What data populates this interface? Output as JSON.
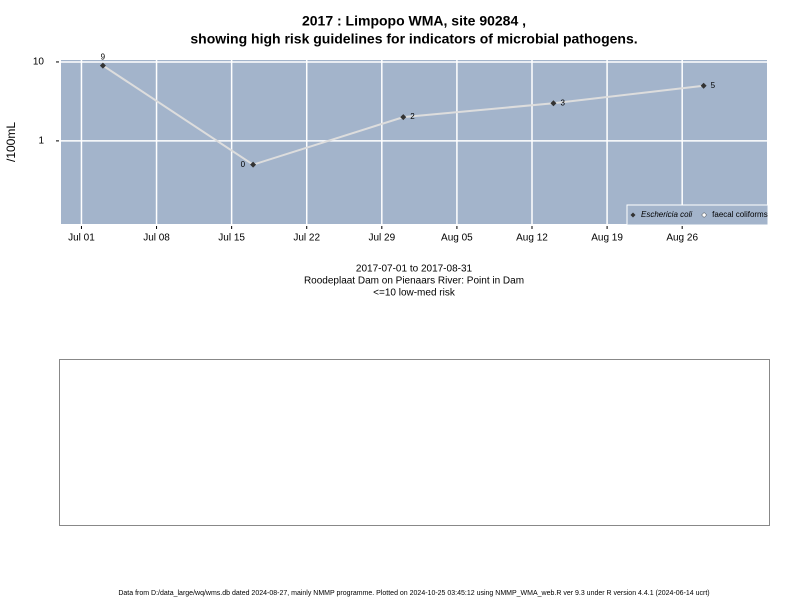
{
  "chart_data": {
    "type": "line",
    "title": [
      "2017 : Limpopo WMA, site 90284 ,",
      "showing high risk guidelines for indicators of microbial pathogens."
    ],
    "y_label": "/100mL",
    "x": [
      "2017-07-03",
      "2017-07-17",
      "2017-07-31",
      "2017-08-14",
      "2017-08-28"
    ],
    "series": [
      {
        "name": "Eschericia coli",
        "color": "#333333",
        "line_color": "#dddddd",
        "values": [
          9,
          0.5,
          2,
          3,
          5
        ],
        "value_labels": [
          "9",
          "0",
          "2",
          "3",
          "5"
        ]
      },
      {
        "name": "faecal coliforms",
        "color": "#ffffff",
        "values": [
          null,
          null,
          null,
          null,
          null
        ]
      }
    ],
    "xlim": [
      "2017-06-29",
      "2017-09-03"
    ],
    "xticks": [
      {
        "value": "2017-07-01",
        "label": "Jul 01"
      },
      {
        "value": "2017-07-08",
        "label": "Jul 08"
      },
      {
        "value": "2017-07-15",
        "label": "Jul 15"
      },
      {
        "value": "2017-07-22",
        "label": "Jul 22"
      },
      {
        "value": "2017-07-29",
        "label": "Jul 29"
      },
      {
        "value": "2017-08-05",
        "label": "Aug 05"
      },
      {
        "value": "2017-08-12",
        "label": "Aug 12"
      },
      {
        "value": "2017-08-19",
        "label": "Aug 19"
      },
      {
        "value": "2017-08-26",
        "label": "Aug 26"
      }
    ],
    "ylim": [
      0.086,
      10.9
    ],
    "yticks": [
      1,
      10
    ],
    "log_y": true,
    "grid": true,
    "legend": "bottom-right",
    "background": "#a3b4cb",
    "captions": [
      "2017-07-01 to 2017-08-31",
      "Roodeplaat Dam on Pienaars River: Point in Dam",
      "<=10 low-med risk"
    ],
    "footer": "Data from D:/data_large/wq/wms.db dated 2024-08-27, mainly NMMP programme. Plotted on 2024-10-25 03:45:12 using NMMP_WMA_web.R ver 9.3 under R version 4.4.1 (2024-06-14 ucrt)"
  }
}
